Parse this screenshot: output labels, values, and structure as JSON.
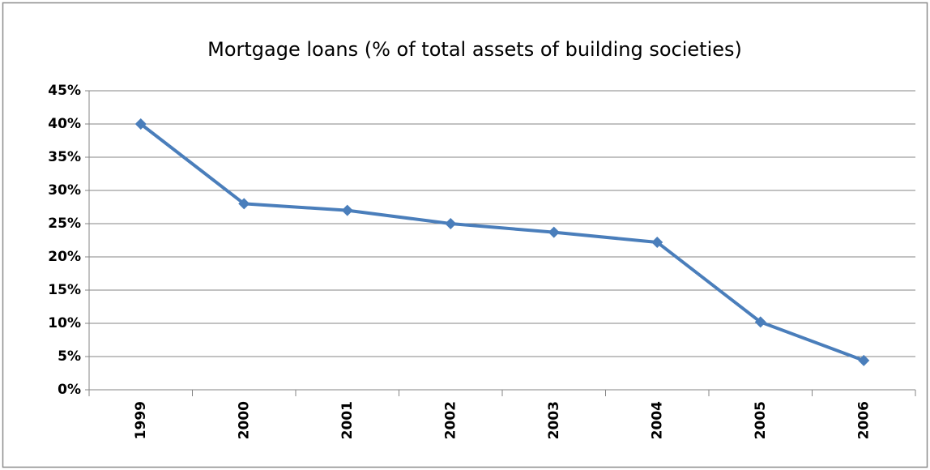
{
  "chart_data": {
    "type": "line",
    "title": "Mortgage loans (% of total assets of building societies)",
    "categories": [
      "1999",
      "2000",
      "2001",
      "2002",
      "2003",
      "2004",
      "2005",
      "2006"
    ],
    "series": [
      {
        "name": "Mortgage loans",
        "color": "#4a7ebb",
        "values": [
          40,
          28,
          27,
          25,
          23.7,
          22.2,
          10.2,
          4.4
        ]
      }
    ],
    "ylim": [
      0,
      45
    ],
    "yticks": [
      {
        "value": 0,
        "label": "0%"
      },
      {
        "value": 5,
        "label": "5%"
      },
      {
        "value": 10,
        "label": "10%"
      },
      {
        "value": 15,
        "label": "15%"
      },
      {
        "value": 20,
        "label": "20%"
      },
      {
        "value": 25,
        "label": "25%"
      },
      {
        "value": 30,
        "label": "30%"
      },
      {
        "value": 35,
        "label": "35%"
      },
      {
        "value": 40,
        "label": "40%"
      },
      {
        "value": 45,
        "label": "45%"
      }
    ],
    "grid": true
  }
}
